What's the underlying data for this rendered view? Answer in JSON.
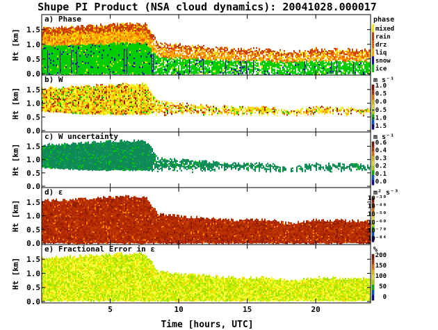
{
  "figure": {
    "title": "Shupe PI Product (NSA cloud dynamics): 20041028.000017",
    "xlabel": "Time [hours, UTC]"
  },
  "chart_data": [
    {
      "type": "heatmap",
      "title": "a) Phase",
      "ylabel": "Ht [km]",
      "xlim": [
        0,
        24
      ],
      "ylim": [
        0,
        1.8
      ],
      "xticks": [
        5,
        10,
        15,
        20
      ],
      "yticks": [
        "0.0",
        "0.5",
        "1.0",
        "1.5"
      ],
      "colorbar": {
        "unit": "phase",
        "labels": [
          "mixed",
          "rain",
          "drz",
          "liq",
          "snow",
          "ice"
        ],
        "colors": [
          "#f5e400",
          "#c43b00",
          "#e85a00",
          "#ffa500",
          "#0a0aa8",
          "#00cc00"
        ]
      },
      "cloud_top_km": [
        [
          0,
          1.55
        ],
        [
          3,
          1.62
        ],
        [
          5,
          1.68
        ],
        [
          6,
          1.7
        ],
        [
          7.5,
          1.7
        ],
        [
          8,
          1.4
        ],
        [
          8.5,
          1.05
        ],
        [
          11,
          0.95
        ],
        [
          14,
          0.85
        ],
        [
          16.5,
          0.85
        ],
        [
          18,
          0.72
        ],
        [
          20,
          0.85
        ],
        [
          24,
          0.8
        ]
      ]
    },
    {
      "type": "heatmap",
      "title": "b) W",
      "ylabel": "Ht [km]",
      "xlim": [
        0,
        24
      ],
      "ylim": [
        0,
        1.8
      ],
      "xticks": [
        5,
        10,
        15,
        20
      ],
      "yticks": [
        "0.0",
        "0.5",
        "1.0",
        "1.5"
      ],
      "colorbar": {
        "unit": "m s⁻¹",
        "labels": [
          "1.0",
          "0.5",
          "0.0",
          "-0.5",
          "-1.0",
          "-1.5"
        ],
        "colors": [
          "#8b1a00",
          "#c43b00",
          "#ff7f00",
          "#ffd400",
          "#ffff40",
          "#b8f000",
          "#00cc00",
          "#0060e0",
          "#0a0aa8"
        ]
      },
      "data_range": [
        -1.5,
        1.0
      ]
    },
    {
      "type": "heatmap",
      "title": "c) W uncertainty",
      "ylabel": "Ht [km]",
      "xlim": [
        0,
        24
      ],
      "ylim": [
        0,
        1.8
      ],
      "xticks": [
        5,
        10,
        15,
        20
      ],
      "yticks": [
        "0.0",
        "0.5",
        "1.0",
        "1.5"
      ],
      "colorbar": {
        "unit": "m s⁻¹",
        "labels": [
          "0.6",
          "0.4",
          "0.3",
          "0.2",
          "0.1",
          "0.0"
        ],
        "colors": [
          "#8b1a00",
          "#c43b00",
          "#ff7f00",
          "#ffd400",
          "#ffff40",
          "#b8f000",
          "#00cc00",
          "#0060e0",
          "#0a0aa8"
        ]
      },
      "data_range": [
        0.0,
        0.6
      ]
    },
    {
      "type": "heatmap",
      "title": "d) ε",
      "ylabel": "Ht [km]",
      "xlim": [
        0,
        24
      ],
      "ylim": [
        0,
        1.8
      ],
      "xticks": [
        5,
        10,
        15,
        20
      ],
      "yticks": [
        "0.0",
        "0.5",
        "1.0",
        "1.5"
      ],
      "colorbar": {
        "unit": "m² s⁻³",
        "labels": [
          "10⁻³⁰",
          "10⁻⁴⁰",
          "10⁻⁵⁰",
          "10⁻⁶⁰",
          "10⁻⁷⁰",
          "10⁻⁸⁴"
        ],
        "colors": [
          "#8b1a00",
          "#c43b00",
          "#ff7f00",
          "#ffd400",
          "#ffff40",
          "#b8f000",
          "#00cc00",
          "#0060e0",
          "#0a0aa8"
        ]
      }
    },
    {
      "type": "heatmap",
      "title": "e) Fractional Error in ε",
      "ylabel": "Ht [km]",
      "xlim": [
        0,
        24
      ],
      "ylim": [
        0,
        1.8
      ],
      "xticks": [
        5,
        10,
        15,
        20
      ],
      "yticks": [
        "0.0",
        "0.5",
        "1.0",
        "1.5"
      ],
      "colorbar": {
        "unit": "%",
        "labels": [
          "200",
          "150",
          "100",
          "50",
          "0"
        ],
        "colors": [
          "#8b1a00",
          "#c43b00",
          "#ff7f00",
          "#ffd400",
          "#ffff40",
          "#b8f000",
          "#00cc00",
          "#0060e0",
          "#0a0aa8"
        ]
      },
      "data_range": [
        0,
        200
      ]
    }
  ]
}
